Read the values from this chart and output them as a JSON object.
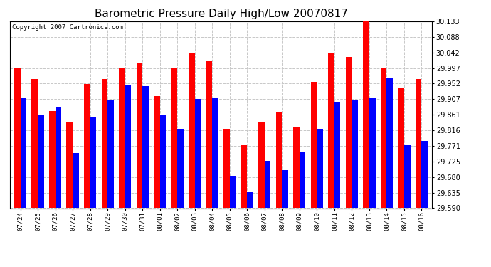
{
  "title": "Barometric Pressure Daily High/Low 20070817",
  "copyright": "Copyright 2007 Cartronics.com",
  "dates": [
    "07/24",
    "07/25",
    "07/26",
    "07/27",
    "07/28",
    "07/29",
    "07/30",
    "07/31",
    "08/01",
    "08/02",
    "08/03",
    "08/04",
    "08/05",
    "08/06",
    "08/07",
    "08/08",
    "08/09",
    "08/10",
    "08/11",
    "08/12",
    "08/13",
    "08/14",
    "08/15",
    "08/16"
  ],
  "highs": [
    29.997,
    29.965,
    29.872,
    29.84,
    29.95,
    29.965,
    29.997,
    30.01,
    29.915,
    29.997,
    30.042,
    30.02,
    29.82,
    29.775,
    29.84,
    29.87,
    29.825,
    29.957,
    30.042,
    30.03,
    30.133,
    29.997,
    29.94,
    29.965
  ],
  "lows": [
    29.91,
    29.862,
    29.885,
    29.75,
    29.856,
    29.905,
    29.948,
    29.945,
    29.863,
    29.82,
    29.908,
    29.91,
    29.684,
    29.637,
    29.728,
    29.7,
    29.755,
    29.82,
    29.9,
    29.905,
    29.912,
    29.97,
    29.775,
    29.785
  ],
  "high_color": "#ff0000",
  "low_color": "#0000ff",
  "bg_color": "#ffffff",
  "grid_color": "#c8c8c8",
  "ymin": 29.59,
  "ymax": 30.133,
  "yticks": [
    29.59,
    29.635,
    29.68,
    29.725,
    29.771,
    29.816,
    29.861,
    29.907,
    29.952,
    29.997,
    30.042,
    30.088,
    30.133
  ],
  "title_fontsize": 11,
  "copyright_fontsize": 6.5,
  "bar_width": 0.35
}
